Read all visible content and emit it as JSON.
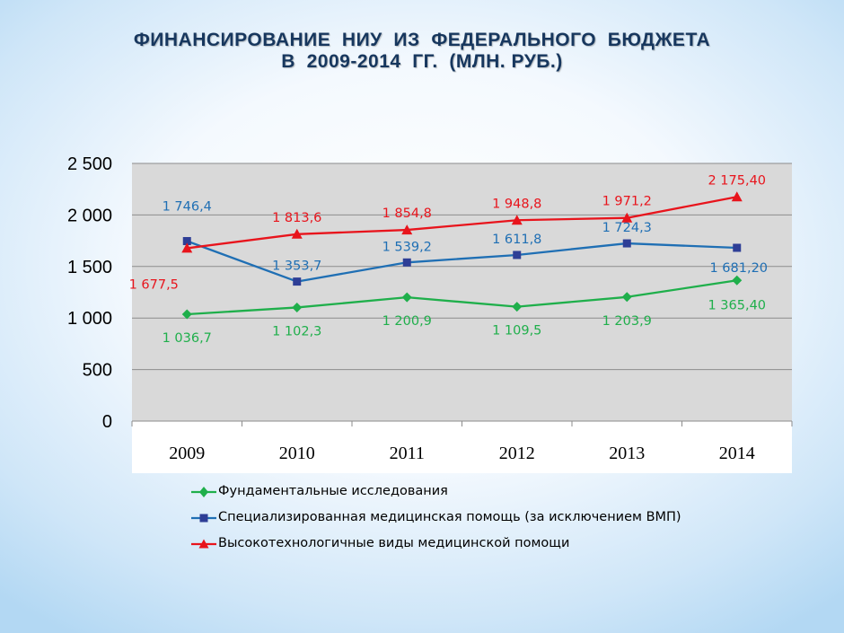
{
  "title": {
    "line1": "ФИНАНСИРОВАНИЕ  НИУ  ИЗ  ФЕДЕРАЛЬНОГО  БЮДЖЕТА",
    "line2": "В  2009-2014  ГГ.  (МЛН. РУБ.)"
  },
  "chart_data": {
    "type": "line",
    "categories": [
      "2009",
      "2010",
      "2011",
      "2012",
      "2013",
      "2014"
    ],
    "y_ticks": [
      "0",
      "500",
      "1 000",
      "1 500",
      "2 000",
      "2 500"
    ],
    "ylim": [
      0,
      2500
    ],
    "grid": true,
    "legend_position": "bottom",
    "plot_background": "#d9d9d9",
    "series": [
      {
        "name": "Фундаментальные исследования",
        "color": "#1faf4b",
        "marker": "diamond",
        "values": [
          1036.7,
          1102.3,
          1200.9,
          1109.5,
          1203.9,
          1365.4
        ],
        "labels": [
          "1 036,7",
          "1 102,3",
          "1 200,9",
          "1 109,5",
          "1 203,9",
          "1 365,40"
        ]
      },
      {
        "name": "Специализированная  медицинская  помощь  (за  исключением  ВМП)",
        "color": "#1f6fb4",
        "marker_color": "#2e3e96",
        "marker": "square",
        "values": [
          1746.4,
          1353.7,
          1539.2,
          1611.8,
          1724.3,
          1681.2
        ],
        "labels": [
          "1 746,4",
          "1 353,7",
          "1 539,2",
          "1 611,8",
          "1 724,3",
          "1 681,20"
        ]
      },
      {
        "name": "Высокотехнологичные  виды  медицинской  помощи",
        "color": "#e8141c",
        "marker": "triangle",
        "values": [
          1677.5,
          1813.6,
          1854.8,
          1948.8,
          1971.2,
          2175.4
        ],
        "labels": [
          "1 677,5",
          "1 813,6",
          "1 854,8",
          "1 948,8",
          "1 971,2",
          "2 175,40"
        ]
      }
    ]
  }
}
